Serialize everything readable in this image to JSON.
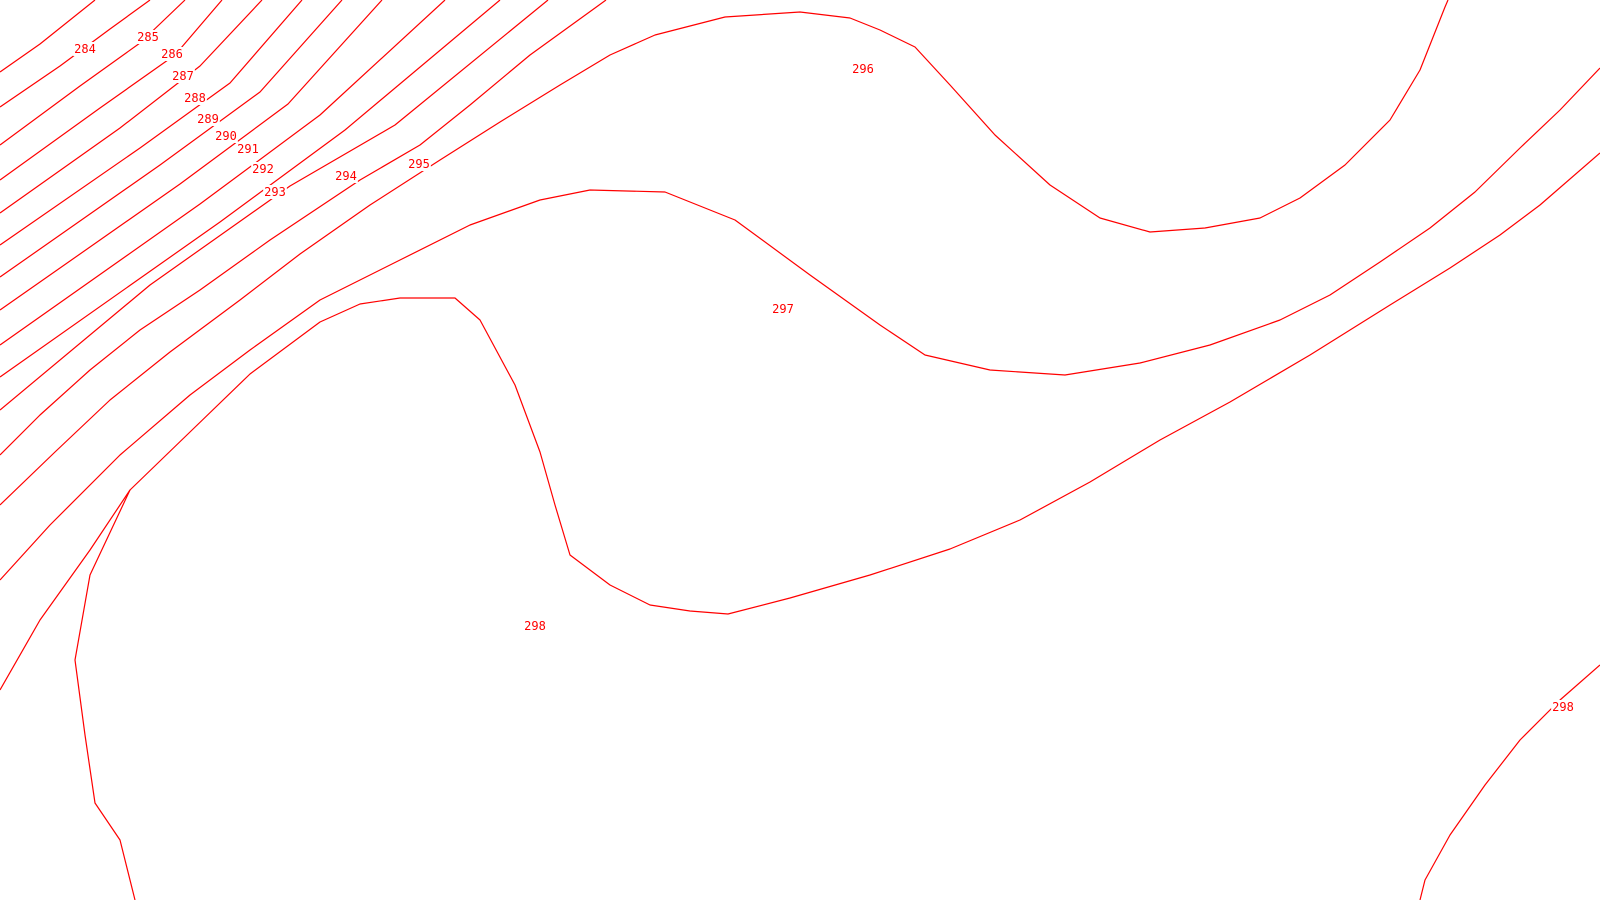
{
  "colors": {
    "line": "#ff0000",
    "background": "#ffffff"
  },
  "chart_data": {
    "type": "contour",
    "levels": [
      284,
      285,
      286,
      287,
      288,
      289,
      290,
      291,
      292,
      293,
      294,
      295,
      296,
      297,
      298
    ],
    "labels": [
      {
        "level": 284,
        "text": "284"
      },
      {
        "level": 285,
        "text": "285"
      },
      {
        "level": 286,
        "text": "286"
      },
      {
        "level": 287,
        "text": "287"
      },
      {
        "level": 288,
        "text": "288"
      },
      {
        "level": 289,
        "text": "289"
      },
      {
        "level": 290,
        "text": "290"
      },
      {
        "level": 291,
        "text": "291"
      },
      {
        "level": 292,
        "text": "292"
      },
      {
        "level": 293,
        "text": "293"
      },
      {
        "level": 294,
        "text": "294"
      },
      {
        "level": 295,
        "text": "295"
      },
      {
        "level": 296,
        "text": "296"
      },
      {
        "level": 297,
        "text": "297"
      },
      {
        "level": 298,
        "text": "298"
      },
      {
        "level": 298,
        "text": "298"
      }
    ],
    "title": "",
    "grid": false
  }
}
